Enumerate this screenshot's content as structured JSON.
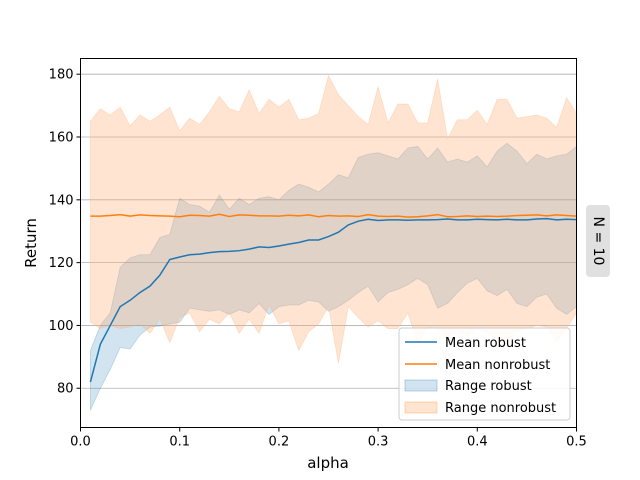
{
  "chart_data": {
    "type": "line",
    "xlabel": "alpha",
    "ylabel": "Return",
    "side_label": "N = 10",
    "xlim": [
      0.0,
      0.5
    ],
    "ylim": [
      67.5,
      185
    ],
    "xticks": [
      "0.0",
      "0.1",
      "0.2",
      "0.3",
      "0.4",
      "0.5"
    ],
    "yticks": [
      "80",
      "100",
      "120",
      "140",
      "160",
      "180"
    ],
    "grid": "horizontal",
    "legend_position": "bottom-right",
    "colors": {
      "robust": "#1f77b4",
      "nonrobust": "#ff7f0e",
      "band_robust": "#1f77b4",
      "band_nonrobust": "#ffb27a"
    },
    "x": [
      0.01,
      0.02,
      0.03,
      0.04,
      0.05,
      0.06,
      0.07,
      0.08,
      0.09,
      0.1,
      0.11,
      0.12,
      0.13,
      0.14,
      0.15,
      0.16,
      0.17,
      0.18,
      0.19,
      0.2,
      0.21,
      0.22,
      0.23,
      0.24,
      0.25,
      0.26,
      0.27,
      0.28,
      0.29,
      0.3,
      0.31,
      0.32,
      0.33,
      0.34,
      0.35,
      0.36,
      0.37,
      0.38,
      0.39,
      0.4,
      0.41,
      0.42,
      0.43,
      0.44,
      0.45,
      0.46,
      0.47,
      0.48,
      0.49,
      0.5
    ],
    "series": [
      {
        "name": "Mean robust",
        "values": [
          82,
          94,
          100,
          106,
          108,
          110.5,
          112.5,
          116,
          121,
          121.8,
          122.5,
          122.7,
          123.2,
          123.5,
          123.6,
          123.8,
          124.3,
          125,
          124.8,
          125.3,
          125.9,
          126.4,
          127.2,
          127.2,
          128.3,
          129.7,
          132,
          133.2,
          133.8,
          133.4,
          133.6,
          133.6,
          133.5,
          133.6,
          133.6,
          133.7,
          133.9,
          133.6,
          133.6,
          133.8,
          133.7,
          133.6,
          133.8,
          133.6,
          133.6,
          133.9,
          134,
          133.6,
          133.8,
          133.7
        ]
      },
      {
        "name": "Mean nonrobust",
        "values": [
          134.8,
          134.8,
          135,
          135.3,
          134.8,
          135.2,
          135,
          134.9,
          134.8,
          134.6,
          135.1,
          135,
          134.8,
          135.4,
          134.7,
          135.2,
          135.1,
          134.9,
          134.9,
          134.8,
          135.1,
          134.9,
          135.2,
          134.6,
          135,
          134.8,
          134.9,
          134.7,
          135.3,
          134.8,
          134.7,
          134.8,
          134.5,
          134.6,
          134.9,
          135.3,
          134.6,
          134.7,
          134.9,
          134.7,
          134.8,
          134.7,
          134.8,
          135,
          135.1,
          135.2,
          134.9,
          135.2,
          135,
          134.8
        ]
      }
    ],
    "bands": [
      {
        "name": "Range robust",
        "lower": [
          73,
          80,
          86,
          93,
          92.5,
          97,
          99.5,
          99.8,
          100.5,
          101,
          105.5,
          105,
          104.5,
          105,
          103.5,
          105,
          104,
          107,
          103.5,
          106,
          106.5,
          106.5,
          108,
          107.5,
          104.5,
          106,
          108,
          110.5,
          112.5,
          107.5,
          110.5,
          111.5,
          113,
          115,
          113,
          105.5,
          107,
          110.5,
          113.5,
          115,
          111,
          109.5,
          111.5,
          107,
          106,
          109,
          110,
          105.5,
          103.5,
          106
        ],
        "upper": [
          92,
          100,
          104,
          118.5,
          121.5,
          122.5,
          122.5,
          128,
          129,
          140.5,
          138.5,
          138,
          136,
          141.5,
          137,
          140.5,
          138.5,
          140.5,
          141,
          140,
          143,
          145,
          144,
          142.5,
          145,
          148,
          147,
          153.5,
          154.5,
          155,
          154,
          153,
          156.5,
          157,
          153,
          156.5,
          152,
          153,
          152,
          154,
          150.5,
          155.5,
          158,
          155.5,
          151.5,
          154.5,
          153,
          154,
          154.5,
          157
        ]
      },
      {
        "name": "Range nonrobust",
        "lower": [
          101,
          99,
          100,
          99,
          99.5,
          100.5,
          97.5,
          102,
          94.5,
          102.5,
          104,
          98,
          102,
          100.5,
          104,
          97.5,
          102,
          97.5,
          106.5,
          100.5,
          101.5,
          92,
          98,
          100.5,
          106,
          88,
          106,
          102.5,
          99.5,
          101.5,
          99,
          99,
          104,
          94,
          99.5,
          99,
          96,
          98.5,
          96.5,
          99,
          97.5,
          96,
          93,
          98,
          99,
          100,
          99.5,
          95,
          99,
          104
        ]
      },
      {
        "name": "Range nonrobust",
        "upper": [
          165,
          169,
          167,
          169.5,
          163.5,
          167,
          165,
          167,
          169.5,
          162,
          166,
          164,
          168,
          173,
          169,
          168,
          175,
          167.5,
          172,
          169.5,
          172,
          165.5,
          166,
          167.5,
          179.5,
          173.5,
          170,
          166.5,
          164,
          176,
          164.5,
          170.5,
          170.5,
          164.5,
          164.5,
          178.5,
          159.5,
          165.5,
          165.5,
          168.5,
          164,
          172,
          172,
          166,
          166.5,
          167,
          166,
          163,
          172.5,
          167.5
        ]
      }
    ]
  }
}
